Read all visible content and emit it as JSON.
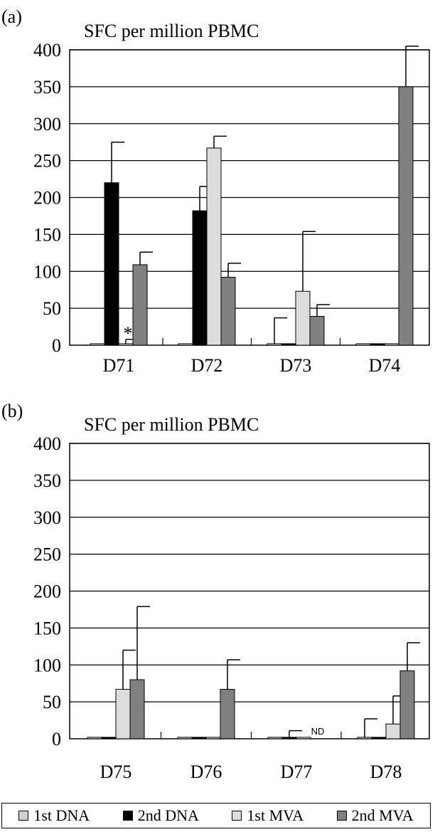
{
  "chart_data": [
    {
      "type": "bar",
      "panel_label": "(a)",
      "ylabel": "SFC per million PBMC",
      "ylim": [
        0,
        400
      ],
      "yticks": [
        "0",
        "50",
        "100",
        "150",
        "200",
        "250",
        "300",
        "350",
        "400"
      ],
      "grid": true,
      "categories": [
        "D71",
        "D72",
        "D73",
        "D74"
      ],
      "series": [
        {
          "name": "1st DNA",
          "values": [
            2,
            2,
            2,
            2
          ],
          "errors": [
            0,
            0,
            35,
            0
          ]
        },
        {
          "name": "2nd DNA",
          "values": [
            220,
            182,
            2,
            2
          ],
          "errors": [
            55,
            33,
            0,
            0
          ]
        },
        {
          "name": "1st MVA",
          "values": [
            2,
            267,
            73,
            2
          ],
          "errors": [
            6,
            16,
            81,
            0
          ]
        },
        {
          "name": "2nd MVA",
          "values": [
            109,
            92,
            39,
            350
          ],
          "errors": [
            17,
            19,
            16,
            55
          ]
        }
      ],
      "annotations": [
        {
          "text": "*",
          "category": "D71",
          "series": "1st MVA"
        }
      ]
    },
    {
      "type": "bar",
      "panel_label": "(b)",
      "ylabel": "SFC per million PBMC",
      "ylim": [
        0,
        400
      ],
      "yticks": [
        "0",
        "50",
        "100",
        "150",
        "200",
        "250",
        "300",
        "350",
        "400"
      ],
      "grid": true,
      "categories": [
        "D75",
        "D76",
        "D77",
        "D78"
      ],
      "series": [
        {
          "name": "1st DNA",
          "values": [
            2,
            2,
            2,
            2
          ],
          "errors": [
            0,
            0,
            0,
            25
          ]
        },
        {
          "name": "2nd DNA",
          "values": [
            2,
            2,
            2,
            2
          ],
          "errors": [
            0,
            0,
            9,
            0
          ]
        },
        {
          "name": "1st MVA",
          "values": [
            67,
            2,
            2,
            20
          ],
          "errors": [
            53,
            0,
            0,
            38
          ]
        },
        {
          "name": "2nd MVA",
          "values": [
            80,
            67,
            null,
            92
          ],
          "errors": [
            99,
            40,
            null,
            38
          ]
        }
      ],
      "annotations": [
        {
          "text": "ND",
          "category": "D77",
          "series": "2nd MVA"
        }
      ]
    }
  ],
  "legend": {
    "items": [
      {
        "label": "1st DNA",
        "color": "#cfcfcf"
      },
      {
        "label": "2nd DNA",
        "color": "#000000"
      },
      {
        "label": "1st MVA",
        "color": "#dcdcdc"
      },
      {
        "label": "2nd MVA",
        "color": "#808080"
      }
    ]
  },
  "colors": {
    "1st DNA": "#cfcfcf",
    "2nd DNA": "#000000",
    "1st MVA": "#dcdcdc",
    "2nd MVA": "#808080"
  }
}
